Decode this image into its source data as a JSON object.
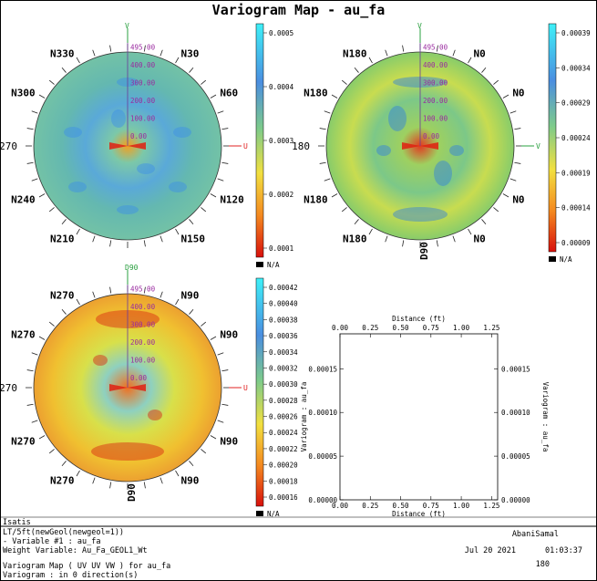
{
  "title": "Variogram Map - au_fa",
  "maps": [
    {
      "id": "map1",
      "top_label": "V",
      "right_label": "U",
      "left_label": "270",
      "dirs": [
        "N330",
        "N30",
        "N300",
        "N60",
        "N240",
        "N120",
        "N210",
        "N150"
      ],
      "bottom_label": "",
      "radial_ticks": [
        "0.00",
        "100.00",
        "200.00",
        "300.00",
        "400.00",
        "495.00"
      ],
      "colorbar": [
        "0.0005",
        "0.0004",
        "0.0003",
        "0.0002",
        "0.0001"
      ]
    },
    {
      "id": "map2",
      "top_label": "V",
      "right_label": "V",
      "left_label": "180",
      "dirs": [
        "N180",
        "N0",
        "N180",
        "N0",
        "N180",
        "N0",
        "N180",
        "N0"
      ],
      "bottom_label": "D90",
      "radial_ticks": [
        "0.00",
        "100.00",
        "200.00",
        "300.00",
        "400.00",
        "495.00"
      ],
      "colorbar": [
        "0.00039",
        "0.00034",
        "0.00029",
        "0.00024",
        "0.00019",
        "0.00014",
        "0.00009"
      ]
    },
    {
      "id": "map3",
      "top_label": "D90",
      "right_label": "U",
      "left_label": "270",
      "dirs": [
        "N270",
        "N90",
        "N270",
        "N90",
        "N270",
        "N90",
        "N270",
        "N90"
      ],
      "bottom_label": "D90",
      "radial_ticks": [
        "0.00",
        "100.00",
        "200.00",
        "300.00",
        "400.00",
        "495.00"
      ],
      "colorbar": [
        "0.00042",
        "0.00040",
        "0.00038",
        "0.00036",
        "0.00034",
        "0.00032",
        "0.00030",
        "0.00028",
        "0.00026",
        "0.00024",
        "0.00022",
        "0.00020",
        "0.00018",
        "0.00016"
      ]
    }
  ],
  "na_label": "N/A",
  "chart_data": {
    "type": "line",
    "title": "",
    "xlabel": "Distance (ft)",
    "ylabel": "Variogram : au_fa",
    "x_ticks": [
      "0.00",
      "0.25",
      "0.50",
      "0.75",
      "1.00",
      "1.25"
    ],
    "y_ticks": [
      "0.00000",
      "0.00005",
      "0.00010",
      "0.00015"
    ],
    "xlim": [
      0,
      1.3
    ],
    "ylim": [
      0,
      0.00019
    ],
    "series": []
  },
  "footer": {
    "app": "Isatis",
    "line1": "LT/5ft(newGeol(newgeol=1))",
    "line2": "- Variable #1 : au_fa",
    "line3": "Weight Variable: Au_Fa_GEOL1_Wt",
    "line4": "Variogram Map ( UV UV VW  ) for au_fa",
    "line5": "Variogram : in 0 direction(s)",
    "user": "AbaniSamal",
    "date": "Jul 20 2021",
    "time": "01:03:37",
    "page": "180"
  }
}
